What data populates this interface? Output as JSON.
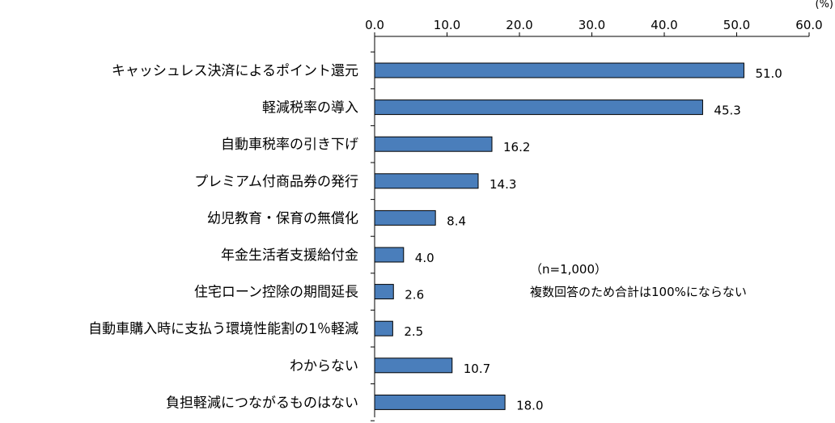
{
  "chart_data": {
    "type": "bar",
    "orientation": "horizontal",
    "unit": "(%)",
    "xlim": [
      0,
      60
    ],
    "ticks": [
      "0.0",
      "10.0",
      "20.0",
      "30.0",
      "40.0",
      "50.0",
      "60.0"
    ],
    "categories": [
      "キャッシュレス決済によるポイント還元",
      "軽減税率の導入",
      "自動車税率の引き下げ",
      "プレミアム付商品券の発行",
      "幼児教育・保育の無償化",
      "年金生活者支援給付金",
      "住宅ローン控除の期間延長",
      "自動車購入時に支払う環境性能割の1％軽減",
      "わからない",
      "負担軽減につながるものはない"
    ],
    "values": [
      51.0,
      45.3,
      16.2,
      14.3,
      8.4,
      4.0,
      2.6,
      2.5,
      10.7,
      18.0
    ],
    "value_labels": [
      "51.0",
      "45.3",
      "16.2",
      "14.3",
      "8.4",
      "4.0",
      "2.6",
      "2.5",
      "10.7",
      "18.0"
    ],
    "bar_color": "#4a7ebb",
    "grid": false,
    "legend": "none"
  },
  "note": {
    "line1": "（n=1,000）",
    "line2": "複数回答のため合計は100%にならない"
  }
}
